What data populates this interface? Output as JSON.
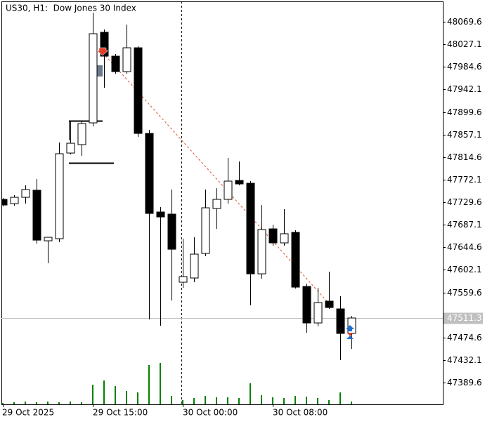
{
  "chart_data": {
    "type": "candlestick",
    "title": "US30, H1:  Dow Jones 30 Index",
    "categories": [
      "29 Oct 2025",
      null,
      null,
      null,
      null,
      null,
      null,
      null,
      "29 Oct 15:00",
      null,
      null,
      null,
      null,
      null,
      null,
      null,
      "30 Oct 00:00",
      null,
      null,
      null,
      null,
      null,
      null,
      null,
      "30 Oct 08:00",
      null,
      null,
      null,
      null,
      null,
      null,
      null
    ],
    "open": [
      47734.9,
      47726.9,
      47738.8,
      47752.1,
      47656.8,
      47660.8,
      47822.2,
      47838.1,
      47879.1,
      48049.8,
      48004.8,
      47975.7,
      48020.6,
      47859.2,
      47711.1,
      47707.1,
      47578.8,
      47586.7,
      47633.0,
      47717.7,
      47734.9,
      47770.6,
      47765.3,
      47594.6,
      47679.3,
      47652.9,
      47672.7,
      47570.8,
      47502.0,
      47543.1,
      47528.5,
      47482.2
    ],
    "high": [
      47737.5,
      47742.8,
      47761.3,
      47773.2,
      47663.4,
      47842.0,
      47883.1,
      47883.1,
      48086.8,
      48055.0,
      48008.7,
      48064.3,
      48023.3,
      47865.9,
      47720.3,
      47753.4,
      47660.8,
      47663.4,
      47753.4,
      47756.0,
      47812.9,
      47806.3,
      47769.3,
      47724.3,
      47687.3,
      47716.4,
      47676.7,
      47576.1,
      47568.2,
      47598.6,
      47552.3,
      47515.2
    ],
    "low": [
      47721.7,
      47723.0,
      47726.9,
      47651.5,
      47614.5,
      47654.2,
      47819.6,
      47816.9,
      47872.5,
      47945.2,
      47971.7,
      47971.7,
      47852.6,
      47508.6,
      47496.7,
      47544.4,
      47568.2,
      47578.8,
      47627.7,
      47679.3,
      47726.9,
      47761.3,
      47535.1,
      47585.4,
      47647.6,
      47647.6,
      47566.9,
      47483.5,
      47495.4,
      47528.5,
      47431.9,
      47453.1
    ],
    "close": [
      47724.3,
      47738.8,
      47753.4,
      47658.1,
      47663.4,
      47820.9,
      47840.7,
      47877.8,
      48047.1,
      48004.8,
      47975.7,
      48020.6,
      47859.2,
      47708.4,
      47701.8,
      47640.9,
      47589.4,
      47631.7,
      47719.0,
      47734.9,
      47769.3,
      47764.0,
      47594.6,
      47678.0,
      47652.9,
      47670.1,
      47569.5,
      47502.0,
      47540.4,
      47531.1,
      47482.2,
      47511.3
    ],
    "volume": [
      200,
      300,
      400,
      300,
      400,
      300,
      400,
      300,
      2800,
      3400,
      2600,
      1900,
      1700,
      5600,
      5900,
      1200,
      600,
      900,
      1200,
      1000,
      1000,
      900,
      3000,
      1300,
      1000,
      900,
      1200,
      1100,
      900,
      600,
      1700,
      400
    ],
    "volume_ylim": [
      0,
      57400
    ],
    "volume_color": "#008000",
    "up_color": "#ffffff",
    "down_color": "#000000",
    "ylim": [
      47348.6,
      48108.0
    ],
    "yticks": [
      48069.6,
      48027.1,
      47984.6,
      47942.1,
      47899.6,
      47857.1,
      47814.6,
      47772.1,
      47729.6,
      47687.1,
      47644.6,
      47602.1,
      47559.6,
      47474.6,
      47432.1,
      47389.6
    ],
    "bid": 47511.3,
    "bid_color": "#c0c0c0"
  }
}
